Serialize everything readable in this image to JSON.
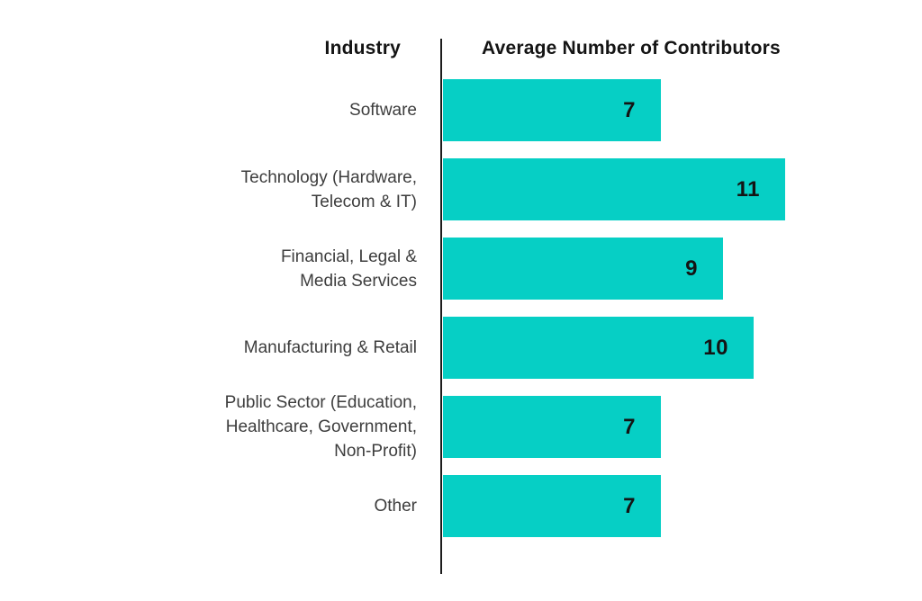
{
  "header": {
    "industry": "Industry",
    "contributors": "Average Number of Contributors"
  },
  "colors": {
    "bar": "#06CFC5",
    "axis": "#1c1c1c",
    "category_label": "#3d3d3d",
    "header_text": "#141414",
    "value_text": "#141414",
    "background": "#ffffff"
  },
  "chart_data": {
    "type": "bar",
    "orientation": "horizontal",
    "title": "",
    "xlabel": "Average Number of Contributors",
    "ylabel": "Industry",
    "categories": [
      "Software",
      "Technology (Hardware,\nTelecom & IT)",
      "Financial, Legal &\nMedia Services",
      "Manufacturing & Retail",
      "Public Sector (Education,\nHealthcare, Government,\nNon-Profit)",
      "Other"
    ],
    "values": [
      7,
      11,
      9,
      10,
      7,
      7
    ],
    "xlim": [
      0,
      12
    ],
    "grid": false,
    "legend": "none",
    "value_labels_shown_inside_bars": true
  }
}
